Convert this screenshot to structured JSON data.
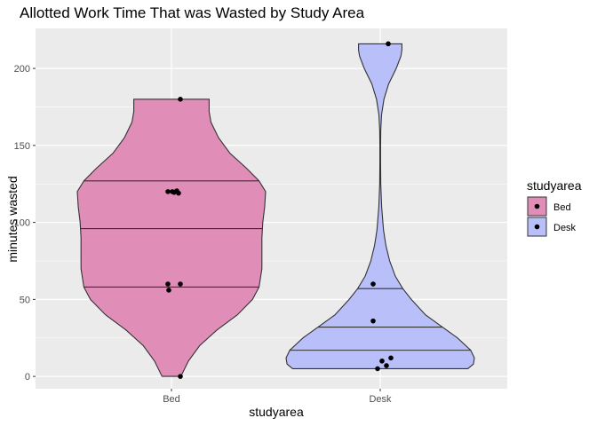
{
  "chart_data": {
    "type": "violin",
    "title": "Allotted Work Time That was Wasted by Study Area",
    "xlabel": "studyarea",
    "ylabel": "minutes wasted",
    "ylim": [
      -8,
      226
    ],
    "yticks": [
      0,
      50,
      100,
      150,
      200
    ],
    "ytick_labels": [
      "0",
      "50",
      "100",
      "150",
      "200"
    ],
    "categories": [
      "Bed",
      "Desk"
    ],
    "grid": true,
    "legend": {
      "title": "studyarea",
      "placement": "right",
      "entries": [
        "Bed",
        "Desk"
      ]
    },
    "colors": {
      "Bed": "#e08eb8",
      "Desk": "#b9bff9",
      "panel": "#ebebeb",
      "grid": "#ffffff",
      "outline": "#333333"
    },
    "series": [
      {
        "name": "Bed",
        "points": [
          180,
          120,
          120,
          120.5,
          119.5,
          119,
          60,
          60,
          56,
          0
        ],
        "quantiles": [
          58,
          96,
          127
        ],
        "density": [
          [
            0,
            0.1
          ],
          [
            10,
            0.18
          ],
          [
            20,
            0.3
          ],
          [
            30,
            0.48
          ],
          [
            40,
            0.7
          ],
          [
            50,
            0.86
          ],
          [
            58,
            0.93
          ],
          [
            70,
            0.96
          ],
          [
            80,
            0.96
          ],
          [
            90,
            0.96
          ],
          [
            100,
            0.97
          ],
          [
            110,
            0.99
          ],
          [
            120,
            1.0
          ],
          [
            127,
            0.93
          ],
          [
            135,
            0.8
          ],
          [
            145,
            0.62
          ],
          [
            155,
            0.5
          ],
          [
            165,
            0.42
          ],
          [
            172,
            0.4
          ],
          [
            180,
            0.4
          ]
        ]
      },
      {
        "name": "Desk",
        "points": [
          216,
          60,
          36,
          12,
          10,
          7,
          5
        ],
        "quantiles": [
          17,
          32,
          57
        ],
        "density": [
          [
            5,
            0.93
          ],
          [
            8,
            0.99
          ],
          [
            12,
            1.0
          ],
          [
            17,
            0.96
          ],
          [
            25,
            0.82
          ],
          [
            32,
            0.66
          ],
          [
            40,
            0.48
          ],
          [
            50,
            0.33
          ],
          [
            57,
            0.24
          ],
          [
            65,
            0.16
          ],
          [
            75,
            0.1
          ],
          [
            85,
            0.06
          ],
          [
            95,
            0.035
          ],
          [
            110,
            0.015
          ],
          [
            125,
            0.006
          ],
          [
            140,
            0.004
          ],
          [
            150,
            0.004
          ],
          [
            160,
            0.006
          ],
          [
            170,
            0.014
          ],
          [
            180,
            0.04
          ],
          [
            190,
            0.09
          ],
          [
            200,
            0.17
          ],
          [
            208,
            0.22
          ],
          [
            212,
            0.23
          ],
          [
            216,
            0.23
          ]
        ]
      }
    ]
  }
}
